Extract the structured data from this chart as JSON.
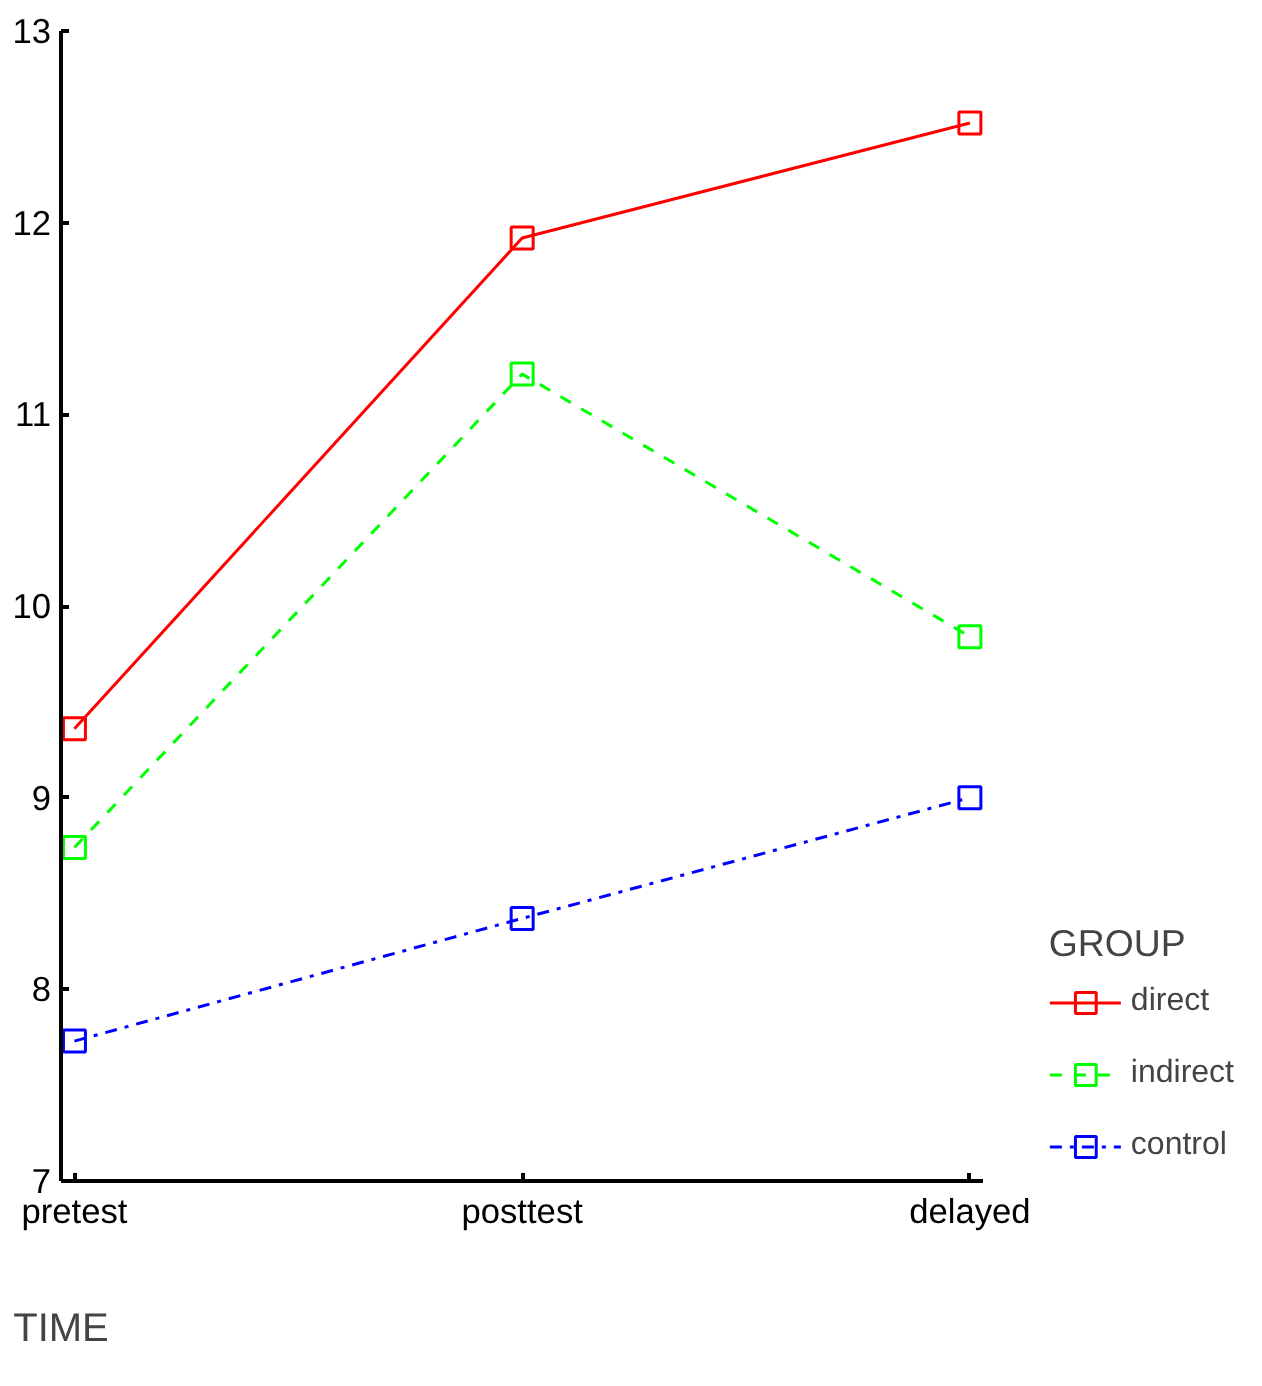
{
  "chart_data": {
    "type": "line",
    "xlabel": "TIME",
    "legend_title": "GROUP",
    "categories": [
      "pretest",
      "posttest",
      "delayed"
    ],
    "ylim": [
      7,
      13
    ],
    "yticks": [
      7,
      8,
      9,
      10,
      11,
      12,
      13
    ],
    "grid": false,
    "legend": "right",
    "marker": "square",
    "series": [
      {
        "name": "direct",
        "color": "#ff0000",
        "line_style": "solid",
        "values": [
          9.36,
          11.92,
          12.52
        ]
      },
      {
        "name": "indirect",
        "color": "#00ff00",
        "line_style": "dashed",
        "values": [
          8.74,
          11.21,
          9.84
        ]
      },
      {
        "name": "control",
        "color": "#0000ff",
        "line_style": "dashdot",
        "values": [
          7.73,
          8.37,
          9.0
        ]
      }
    ]
  }
}
